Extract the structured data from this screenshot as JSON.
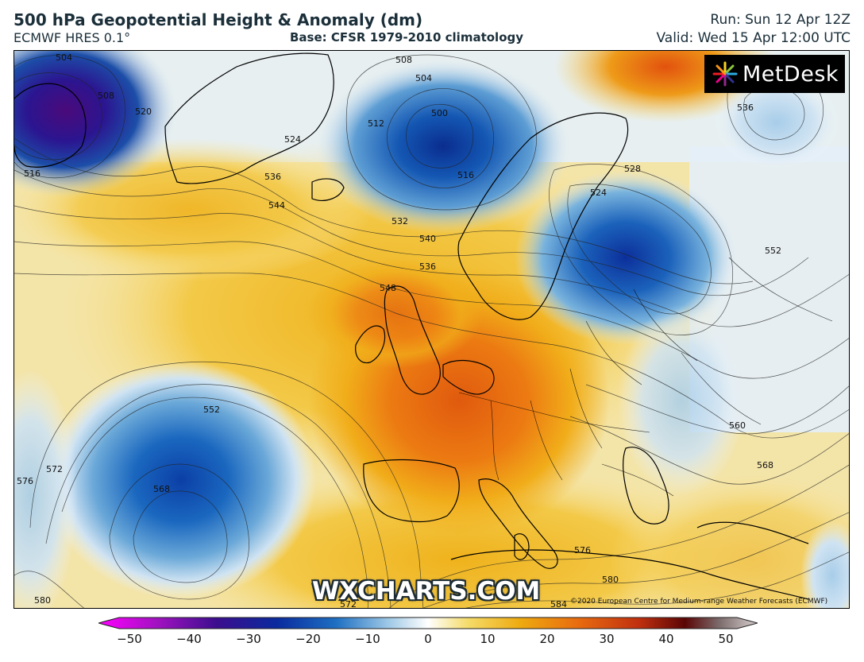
{
  "header": {
    "title": "500 hPa Geopotential Height & Anomaly (dm)",
    "model": "ECMWF HRES 0.1°",
    "base": "Base: CFSR 1979-2010 climatology",
    "run": "Run: Sun 12 Apr 12Z",
    "valid": "Valid: Wed 15 Apr 12:00 UTC"
  },
  "logo": {
    "text": "MetDesk",
    "icon": "starburst-logo-icon"
  },
  "watermark": "WXCHARTS.COM",
  "copyright": "©2020 European Centre for Medium-range Weather Forecasts (ECMWF)",
  "colorbar": {
    "ticks": [
      "−50",
      "−40",
      "−30",
      "−20",
      "−10",
      "0",
      "10",
      "20",
      "30",
      "40",
      "50"
    ],
    "range": [
      -50,
      50
    ],
    "colors": [
      "#ff00ff",
      "#7a0a9a",
      "#2a0d8a",
      "#0a2a9e",
      "#1e6fc2",
      "#9fc9e6",
      "#ffffff",
      "#f5dc6a",
      "#eeaa10",
      "#e86a10",
      "#c0300f",
      "#6a0505",
      "#b8a8a8"
    ]
  },
  "contour_labels": [
    "504",
    "500",
    "508",
    "520",
    "512",
    "524",
    "516",
    "504",
    "508",
    "536",
    "516",
    "528",
    "524",
    "544",
    "532",
    "540",
    "536",
    "548",
    "552",
    "536",
    "552",
    "572",
    "576",
    "568",
    "560",
    "568",
    "576",
    "580",
    "584",
    "572",
    "580"
  ]
}
